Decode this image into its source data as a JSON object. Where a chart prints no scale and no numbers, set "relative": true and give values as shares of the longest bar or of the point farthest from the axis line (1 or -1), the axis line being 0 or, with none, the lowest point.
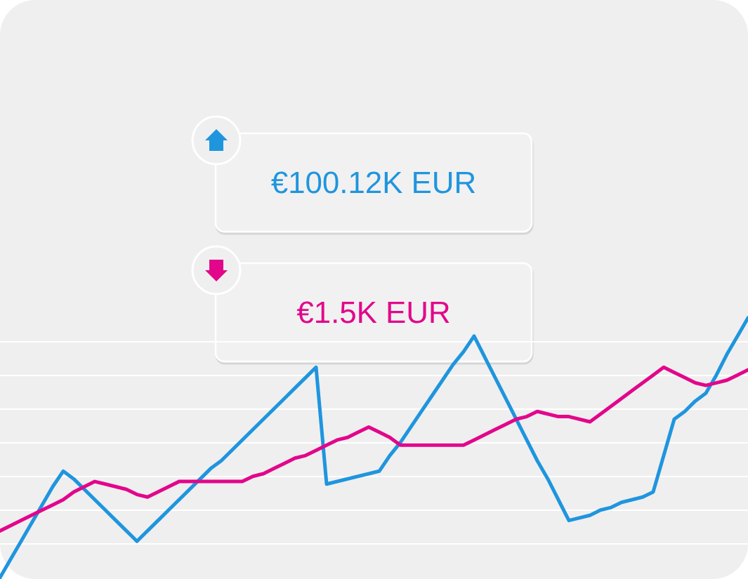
{
  "chart_data": {
    "type": "line",
    "relative": true,
    "grid": "y",
    "categories": [
      null,
      null,
      null,
      null,
      null,
      null,
      null,
      null,
      null,
      null,
      null,
      null,
      null,
      null,
      null,
      null,
      null,
      null,
      null,
      null,
      null,
      null,
      null,
      null,
      null,
      null,
      null,
      null,
      null,
      null,
      null,
      null,
      null,
      null,
      null,
      null,
      null,
      null,
      null,
      null,
      null,
      null,
      null,
      null,
      null,
      null,
      null,
      null,
      null,
      null,
      null,
      null,
      null,
      null,
      null,
      null,
      null,
      null,
      null,
      null,
      null,
      null,
      null,
      null,
      null,
      null,
      null,
      null,
      null,
      null,
      null,
      null
    ],
    "series": [
      {
        "name": "€100.12K EUR",
        "color": "#1f95de",
        "values": [
          0,
          0.07,
          0.14,
          0.21,
          0.28,
          0.35,
          0.41,
          0.38,
          0.34,
          0.3,
          0.26,
          0.22,
          0.18,
          0.14,
          0.18,
          0.22,
          0.26,
          0.3,
          0.34,
          0.38,
          0.42,
          0.45,
          0.49,
          0.53,
          0.57,
          0.61,
          0.65,
          0.69,
          0.73,
          0.77,
          0.81,
          0.36,
          0.37,
          0.38,
          0.39,
          0.4,
          0.41,
          0.47,
          0.52,
          0.58,
          0.64,
          0.7,
          0.76,
          0.82,
          0.87,
          0.93,
          0.85,
          0.77,
          0.69,
          0.61,
          0.53,
          0.45,
          0.38,
          0.3,
          0.22,
          0.23,
          0.24,
          0.26,
          0.27,
          0.29,
          0.3,
          0.31,
          0.33,
          0.47,
          0.61,
          0.64,
          0.68,
          0.71,
          0.78,
          0.86,
          0.93,
          1
        ]
      },
      {
        "name": "€1.5K EUR",
        "color": "#e2068b",
        "values": [
          0.18,
          0.2,
          0.22,
          0.24,
          0.26,
          0.28,
          0.3,
          0.33,
          0.35,
          0.37,
          0.36,
          0.35,
          0.34,
          0.32,
          0.31,
          0.33,
          0.35,
          0.37,
          0.37,
          0.37,
          0.37,
          0.37,
          0.37,
          0.37,
          0.39,
          0.4,
          0.42,
          0.44,
          0.46,
          0.47,
          0.49,
          0.51,
          0.53,
          0.54,
          0.56,
          0.58,
          0.56,
          0.54,
          0.51,
          0.51,
          0.51,
          0.51,
          0.51,
          0.51,
          0.51,
          0.53,
          0.55,
          0.57,
          0.59,
          0.61,
          0.62,
          0.64,
          0.63,
          0.62,
          0.62,
          0.61,
          0.6,
          0.63,
          0.66,
          0.69,
          0.72,
          0.75,
          0.78,
          0.81,
          0.79,
          0.77,
          0.75,
          0.74,
          0.75,
          0.76,
          0.78,
          0.8
        ]
      }
    ]
  }
}
